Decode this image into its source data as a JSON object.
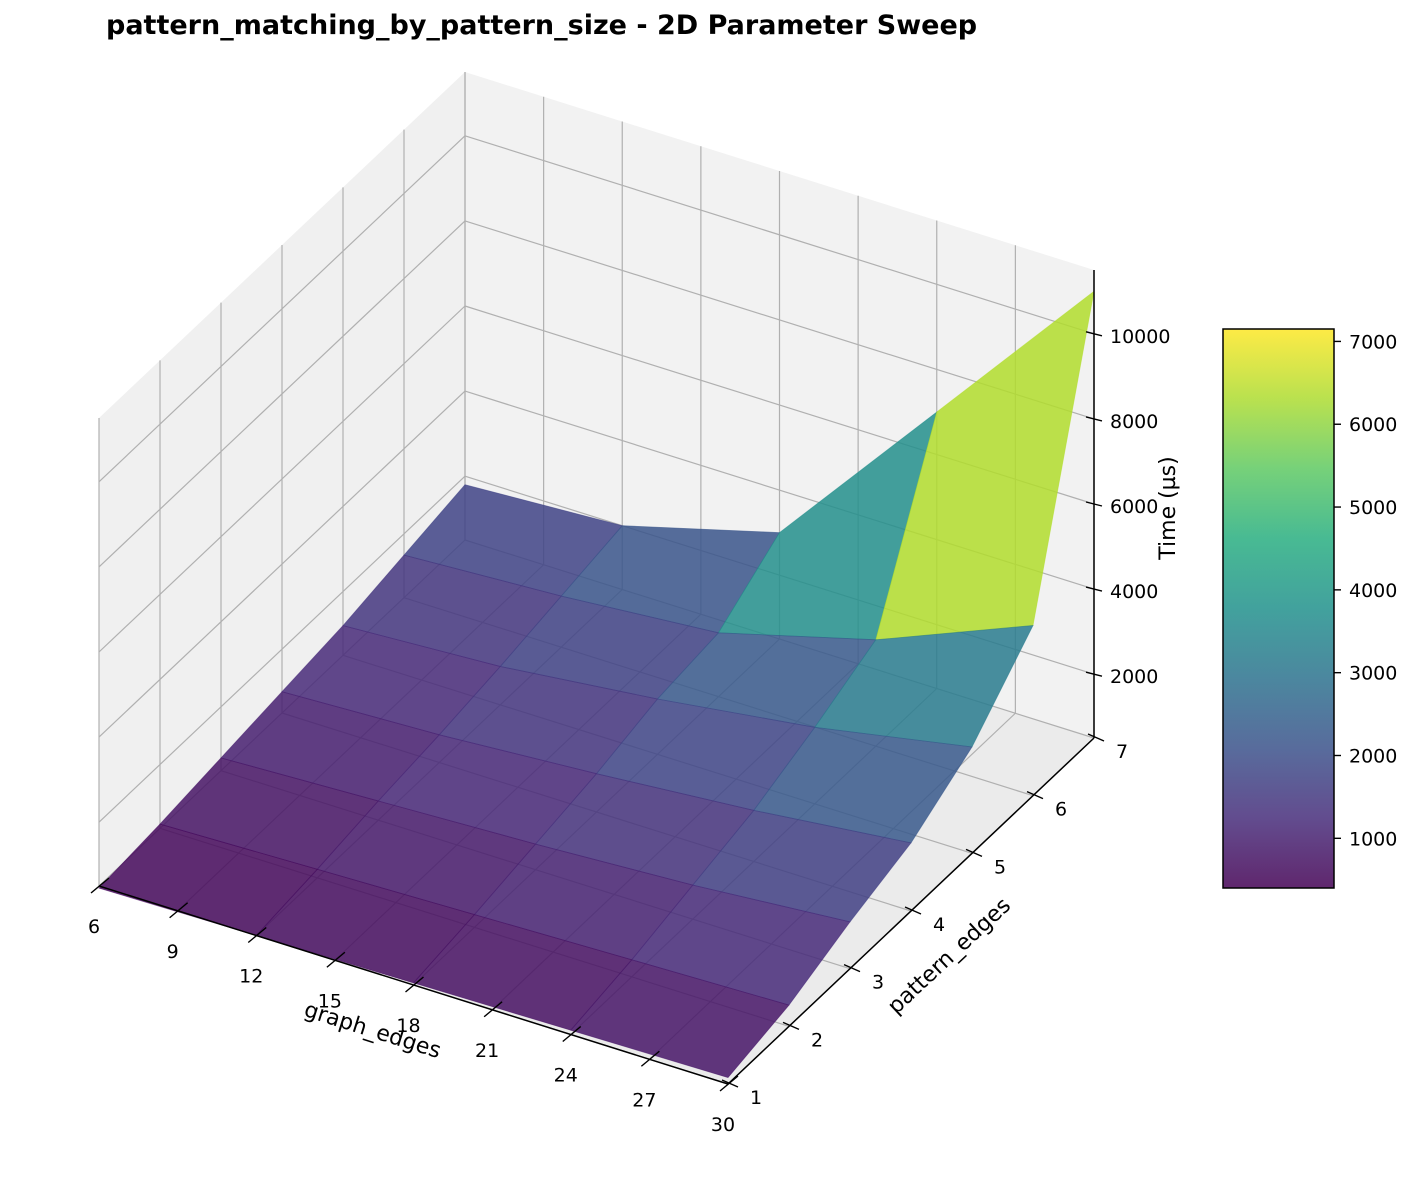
{
  "chart_data": {
    "type": "surface3d",
    "title": "pattern_matching_by_pattern_size - 2D Parameter Sweep",
    "x": {
      "label": "graph_edges",
      "values": [
        6,
        9,
        12,
        15,
        18,
        21,
        24,
        27,
        30
      ],
      "ticks": [
        "6",
        "9",
        "12",
        "15",
        "18",
        "21",
        "24",
        "27",
        "30"
      ]
    },
    "y": {
      "label": "pattern_edges",
      "values": [
        1,
        2,
        3,
        4,
        5,
        6,
        7
      ],
      "ticks": [
        "1",
        "2",
        "3",
        "4",
        "5",
        "6",
        "7"
      ]
    },
    "z": {
      "label": "Time (µs)",
      "ticks": [
        "2000",
        "4000",
        "6000",
        "8000",
        "10000"
      ],
      "zlim": [
        500,
        11500
      ]
    },
    "x_samples": [
      6,
      12,
      18,
      24,
      30
    ],
    "y_samples": [
      1,
      2,
      3,
      4,
      5,
      6,
      7
    ],
    "values": [
      [
        450,
        500,
        550,
        600,
        650
      ],
      [
        600,
        700,
        800,
        900,
        1000
      ],
      [
        800,
        950,
        1100,
        1300,
        1600
      ],
      [
        1000,
        1150,
        1400,
        1700,
        2100
      ],
      [
        1200,
        1400,
        1800,
        2300,
        3000
      ],
      [
        1500,
        1700,
        2000,
        3000,
        4500
      ],
      [
        1800,
        2000,
        3000,
        7000,
        11000
      ]
    ],
    "colorbar": {
      "min": 400,
      "max": 7150,
      "ticks": [
        "1000",
        "2000",
        "3000",
        "4000",
        "5000",
        "6000",
        "7000"
      ],
      "colormap": "viridis"
    }
  },
  "colors": {
    "pane_left": "#f0f0f0",
    "pane_right": "#f2f2f2",
    "pane_floor": "#ebebeb",
    "grid": "#b0b0b0"
  }
}
